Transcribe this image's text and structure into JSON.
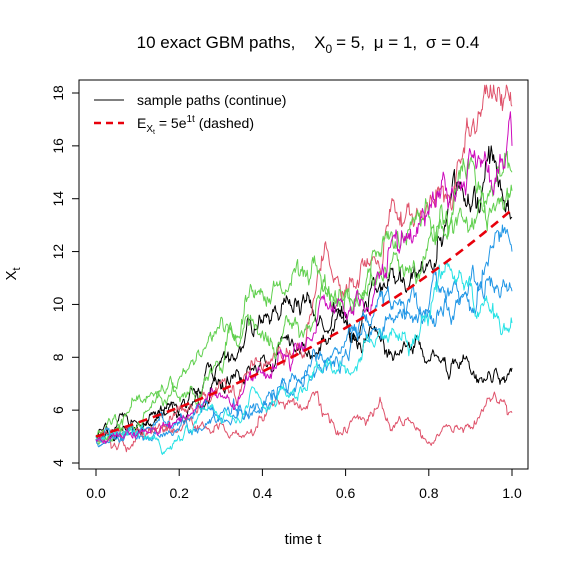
{
  "chart_data": {
    "type": "line",
    "title": {
      "prefix": "10 exact GBM paths,",
      "x0_symbol": "X",
      "x0_sub": "0",
      "x0_value": "= 5,",
      "mu_symbol": "μ",
      "mu_value": "= 1,",
      "sigma_symbol": "σ",
      "sigma_value": "= 0.4"
    },
    "xlabel": "time  t",
    "ylabel": {
      "symbol": "X",
      "sub": "t"
    },
    "xlim": [
      0,
      1
    ],
    "ylim": [
      4,
      18
    ],
    "x_ticks": [
      0.0,
      0.2,
      0.4,
      0.6,
      0.8,
      1.0
    ],
    "x_tick_labels": [
      "0.0",
      "0.2",
      "0.4",
      "0.6",
      "0.8",
      "1.0"
    ],
    "y_ticks": [
      4,
      6,
      8,
      10,
      12,
      14,
      16,
      18
    ],
    "y_tick_labels": [
      "4",
      "6",
      "8",
      "10",
      "12",
      "14",
      "16",
      "18"
    ],
    "grid": false,
    "legend": {
      "position": "top-left",
      "entries": [
        {
          "text": "sample paths (continue)",
          "style": "solid",
          "color": "#000000"
        },
        {
          "text_prefix": "E",
          "text_sub": "X",
          "text_subsub": "t",
          "text_mid": " = 5e",
          "text_sup": "1t",
          "text_suffix": " (dashed)",
          "style": "dashed",
          "color": "#e8000b"
        }
      ]
    },
    "expected_path": {
      "formula": "5*exp(1*t)",
      "color": "#e8000b",
      "style": "dashed"
    },
    "series": [
      {
        "color": "#000000",
        "seed": 11,
        "anchors": [
          [
            0,
            5.0
          ],
          [
            0.1,
            5.5
          ],
          [
            0.2,
            6.0
          ],
          [
            0.3,
            7.8
          ],
          [
            0.4,
            9.3
          ],
          [
            0.5,
            10.2
          ],
          [
            0.6,
            9.5
          ],
          [
            0.7,
            8.0
          ],
          [
            0.8,
            7.9
          ],
          [
            0.9,
            7.5
          ],
          [
            0.95,
            7.1
          ],
          [
            1.0,
            7.6
          ]
        ]
      },
      {
        "color": "#000000",
        "seed": 12,
        "anchors": [
          [
            0,
            5.0
          ],
          [
            0.1,
            5.3
          ],
          [
            0.2,
            5.8
          ],
          [
            0.3,
            6.8
          ],
          [
            0.4,
            8.0
          ],
          [
            0.5,
            8.5
          ],
          [
            0.6,
            9.4
          ],
          [
            0.7,
            10.6
          ],
          [
            0.8,
            11.6
          ],
          [
            0.9,
            13.5
          ],
          [
            0.95,
            16.0
          ],
          [
            1.0,
            13.3
          ]
        ]
      },
      {
        "color": "#df536b",
        "seed": 21,
        "anchors": [
          [
            0,
            4.9
          ],
          [
            0.05,
            4.5
          ],
          [
            0.1,
            5.0
          ],
          [
            0.2,
            5.3
          ],
          [
            0.3,
            5.5
          ],
          [
            0.4,
            5.6
          ],
          [
            0.5,
            6.1
          ],
          [
            0.6,
            5.2
          ],
          [
            0.7,
            5.7
          ],
          [
            0.8,
            4.8
          ],
          [
            0.9,
            5.3
          ],
          [
            0.95,
            6.4
          ],
          [
            1.0,
            5.9
          ]
        ]
      },
      {
        "color": "#df536b",
        "seed": 22,
        "anchors": [
          [
            0,
            4.9
          ],
          [
            0.1,
            5.3
          ],
          [
            0.2,
            6.0
          ],
          [
            0.3,
            7.0
          ],
          [
            0.4,
            7.5
          ],
          [
            0.5,
            8.0
          ],
          [
            0.55,
            12.3
          ],
          [
            0.6,
            10.5
          ],
          [
            0.7,
            13.0
          ],
          [
            0.8,
            13.5
          ],
          [
            0.88,
            15.5
          ],
          [
            0.95,
            18.0
          ],
          [
            1.0,
            17.5
          ]
        ]
      },
      {
        "color": "#61d04f",
        "seed": 31,
        "anchors": [
          [
            0,
            5.0
          ],
          [
            0.1,
            6.4
          ],
          [
            0.2,
            7.2
          ],
          [
            0.3,
            9.5
          ],
          [
            0.4,
            10.5
          ],
          [
            0.5,
            11.3
          ],
          [
            0.6,
            10.5
          ],
          [
            0.7,
            12.5
          ],
          [
            0.8,
            13.3
          ],
          [
            0.9,
            15.5
          ],
          [
            0.95,
            14.5
          ],
          [
            1.0,
            15.0
          ]
        ]
      },
      {
        "color": "#61d04f",
        "seed": 32,
        "anchors": [
          [
            0,
            5.0
          ],
          [
            0.1,
            5.4
          ],
          [
            0.2,
            6.5
          ],
          [
            0.3,
            7.6
          ],
          [
            0.4,
            9.0
          ],
          [
            0.5,
            8.9
          ],
          [
            0.6,
            10.3
          ],
          [
            0.7,
            11.0
          ],
          [
            0.8,
            12.5
          ],
          [
            0.9,
            13.0
          ],
          [
            1.0,
            14.3
          ]
        ]
      },
      {
        "color": "#2297e6",
        "seed": 41,
        "anchors": [
          [
            0,
            4.9
          ],
          [
            0.1,
            5.1
          ],
          [
            0.2,
            5.5
          ],
          [
            0.3,
            5.9
          ],
          [
            0.4,
            6.1
          ],
          [
            0.5,
            7.2
          ],
          [
            0.6,
            8.6
          ],
          [
            0.7,
            9.5
          ],
          [
            0.8,
            9.7
          ],
          [
            0.9,
            9.9
          ],
          [
            1.0,
            12.0
          ]
        ]
      },
      {
        "color": "#2297e6",
        "seed": 42,
        "anchors": [
          [
            0,
            4.9
          ],
          [
            0.1,
            5.0
          ],
          [
            0.2,
            5.3
          ],
          [
            0.3,
            5.7
          ],
          [
            0.4,
            6.0
          ],
          [
            0.5,
            7.0
          ],
          [
            0.6,
            8.3
          ],
          [
            0.7,
            10.5
          ],
          [
            0.8,
            9.9
          ],
          [
            0.9,
            10.9
          ],
          [
            1.0,
            10.5
          ]
        ]
      },
      {
        "color": "#28e2e5",
        "seed": 51,
        "anchors": [
          [
            0,
            5.0
          ],
          [
            0.1,
            5.2
          ],
          [
            0.15,
            4.9
          ],
          [
            0.2,
            5.0
          ],
          [
            0.3,
            5.6
          ],
          [
            0.4,
            6.2
          ],
          [
            0.5,
            6.8
          ],
          [
            0.6,
            7.4
          ],
          [
            0.7,
            8.7
          ],
          [
            0.8,
            9.5
          ],
          [
            0.9,
            10.7
          ],
          [
            1.0,
            9.3
          ]
        ]
      },
      {
        "color": "#cd0bbc",
        "seed": 61,
        "anchors": [
          [
            0,
            4.9
          ],
          [
            0.1,
            5.1
          ],
          [
            0.2,
            5.6
          ],
          [
            0.3,
            6.5
          ],
          [
            0.4,
            7.4
          ],
          [
            0.5,
            8.4
          ],
          [
            0.6,
            9.7
          ],
          [
            0.7,
            11.4
          ],
          [
            0.75,
            12.5
          ],
          [
            0.8,
            13.4
          ],
          [
            0.85,
            14.0
          ],
          [
            0.9,
            15.8
          ],
          [
            0.95,
            14.7
          ],
          [
            1.0,
            16.0
          ]
        ]
      }
    ]
  }
}
